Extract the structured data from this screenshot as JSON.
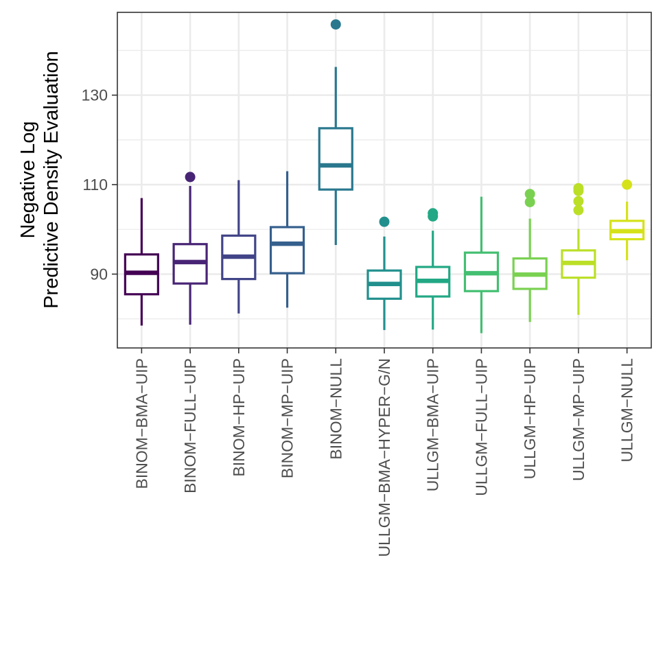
{
  "chart_data": {
    "type": "boxplot",
    "title": "",
    "xlabel": "",
    "ylabel_lines": [
      "Negative Log",
      "Predictive Density Evaluation"
    ],
    "ylim": [
      73.5,
      148.5
    ],
    "yticks": [
      90,
      110,
      130
    ],
    "yticks_minor": [
      80,
      100,
      120,
      140
    ],
    "grid": true,
    "legend": "none",
    "categories": [
      "BINOM−BMA−UIP",
      "BINOM−FULL−UIP",
      "BINOM−HP−UIP",
      "BINOM−MP−UIP",
      "BINOM−NULL",
      "ULLGM−BMA−HYPER−G/N",
      "ULLGM−BMA−UIP",
      "ULLGM−FULL−UIP",
      "ULLGM−HP−UIP",
      "ULLGM−MP−UIP",
      "ULLGM−NULL"
    ],
    "colors": [
      "#440154",
      "#482475",
      "#414487",
      "#355f8d",
      "#2a788e",
      "#21908d",
      "#22a884",
      "#43bf71",
      "#7ad151",
      "#bbdf27",
      "#d5e21a"
    ],
    "series": [
      {
        "name": "BINOM−BMA−UIP",
        "min": 78.5,
        "q1": 85.5,
        "median": 90.3,
        "q3": 94.4,
        "max": 107.0,
        "outliers": []
      },
      {
        "name": "BINOM−FULL−UIP",
        "min": 78.7,
        "q1": 87.9,
        "median": 92.7,
        "q3": 96.7,
        "max": 109.7,
        "outliers": [
          111.7
        ]
      },
      {
        "name": "BINOM−HP−UIP",
        "min": 81.2,
        "q1": 88.9,
        "median": 93.9,
        "q3": 98.6,
        "max": 111.0,
        "outliers": []
      },
      {
        "name": "BINOM−MP−UIP",
        "min": 82.5,
        "q1": 90.2,
        "median": 96.8,
        "q3": 100.5,
        "max": 113.0,
        "outliers": []
      },
      {
        "name": "BINOM−NULL",
        "min": 96.5,
        "q1": 108.9,
        "median": 114.3,
        "q3": 122.6,
        "max": 136.3,
        "outliers": [
          145.8
        ]
      },
      {
        "name": "ULLGM−BMA−HYPER−G/N",
        "min": 77.5,
        "q1": 84.5,
        "median": 87.8,
        "q3": 90.8,
        "max": 98.4,
        "outliers": [
          101.7
        ]
      },
      {
        "name": "ULLGM−BMA−UIP",
        "min": 77.6,
        "q1": 85.0,
        "median": 88.5,
        "q3": 91.6,
        "max": 99.7,
        "outliers": [
          102.9,
          103.6
        ]
      },
      {
        "name": "ULLGM−FULL−UIP",
        "min": 76.8,
        "q1": 86.2,
        "median": 90.2,
        "q3": 94.8,
        "max": 107.3,
        "outliers": []
      },
      {
        "name": "ULLGM−HP−UIP",
        "min": 79.3,
        "q1": 86.7,
        "median": 89.9,
        "q3": 93.5,
        "max": 102.4,
        "outliers": [
          106.1,
          107.9
        ]
      },
      {
        "name": "ULLGM−MP−UIP",
        "min": 80.9,
        "q1": 89.2,
        "median": 92.5,
        "q3": 95.3,
        "max": 100.1,
        "outliers": [
          104.3,
          106.3,
          108.6,
          109.2
        ]
      },
      {
        "name": "ULLGM−NULL",
        "min": 93.1,
        "q1": 97.8,
        "median": 99.6,
        "q3": 101.9,
        "max": 106.2,
        "outliers": [
          110.0
        ]
      }
    ]
  }
}
